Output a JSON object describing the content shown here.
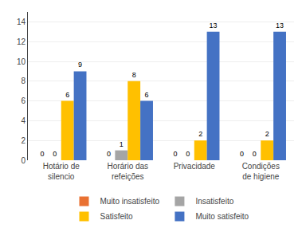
{
  "chart_data": {
    "type": "bar",
    "categories": [
      "Hotário de\nsilencio",
      "Horário das\nrefeições",
      "Privacidade",
      "Condições\nde higiene"
    ],
    "series": [
      {
        "name": "Muito insatisfeito",
        "color": "#E97132",
        "values": [
          0,
          0,
          0,
          0
        ]
      },
      {
        "name": "Insatisfeito",
        "color": "#A5A5A5",
        "values": [
          0,
          1,
          0,
          0
        ]
      },
      {
        "name": "Satisfeito",
        "color": "#FFC000",
        "values": [
          6,
          8,
          2,
          2
        ]
      },
      {
        "name": "Muito satisfeito",
        "color": "#4472C4",
        "values": [
          9,
          6,
          13,
          13
        ]
      }
    ],
    "ylim": [
      0,
      15
    ],
    "yticks": [
      0,
      2,
      4,
      6,
      8,
      10,
      12,
      14
    ],
    "grid": true,
    "data_labels": true,
    "legend": "bottom"
  }
}
